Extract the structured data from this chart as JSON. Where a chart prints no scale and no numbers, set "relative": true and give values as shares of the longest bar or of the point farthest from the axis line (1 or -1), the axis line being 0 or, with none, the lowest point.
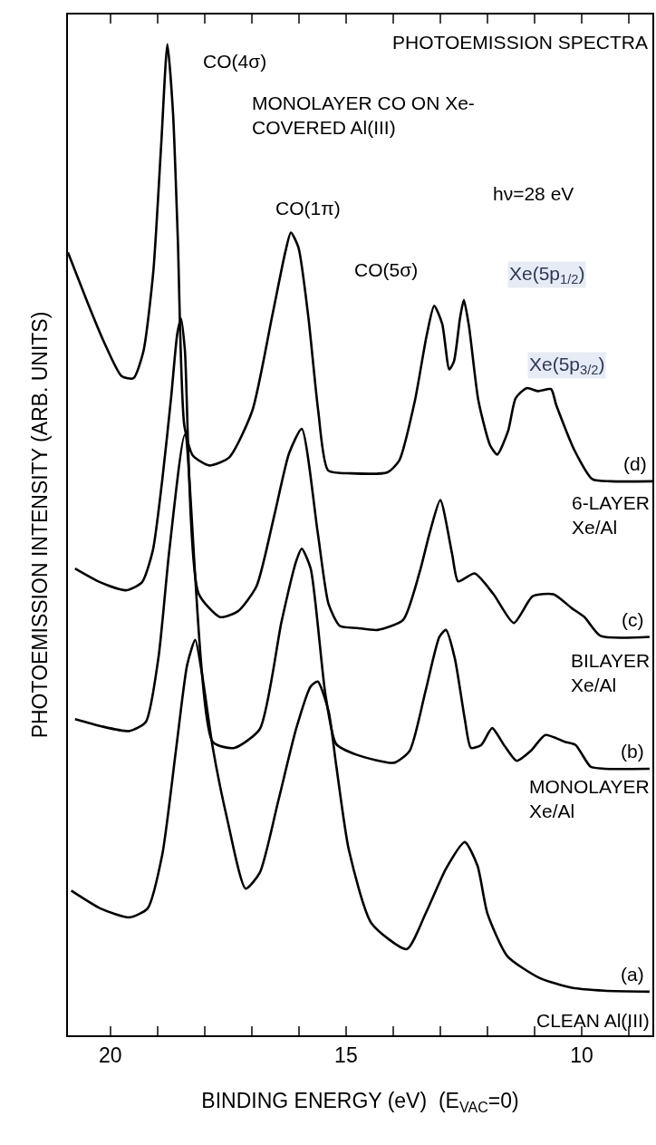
{
  "chart_data": {
    "type": "line",
    "title": "PHOTOEMISSION SPECTRA",
    "subtitle": "MONOLAYER CO ON Xe-\nCOVERED Al(III)",
    "xlabel": "BINDING ENERGY (eV)  (E$_{VAC}$=0)",
    "ylabel": "PHOTOEMISSION INTENSITY (ARB. UNITS)",
    "relative": true,
    "legend": false,
    "marker": "none",
    "line_style": "solid",
    "xlim": [
      20.9,
      8.5
    ],
    "xticks": [
      20,
      {
        "value": 19,
        "label": null
      },
      {
        "value": 18,
        "label": null
      },
      {
        "value": 17,
        "label": null
      },
      {
        "value": 16,
        "label": null
      },
      15,
      {
        "value": 14,
        "label": null
      },
      {
        "value": 13,
        "label": null
      },
      {
        "value": 12,
        "label": null
      },
      {
        "value": 11,
        "label": null
      },
      10,
      {
        "value": 9,
        "label": null
      }
    ],
    "series": [
      {
        "name": "(d)",
        "color": "#000000",
        "x": [
          20.9,
          20.49,
          20.14,
          19.76,
          19.51,
          19.3,
          19.09,
          18.92,
          18.79,
          18.67,
          18.57,
          18.43,
          18.25,
          17.9,
          17.48,
          16.99,
          16.57,
          16.29,
          16.17,
          16.01,
          15.8,
          15.59,
          15.38,
          14.9,
          14.12,
          13.87,
          13.54,
          13.29,
          13.13,
          12.96,
          12.81,
          12.71,
          12.58,
          12.5,
          12.39,
          12.19,
          11.94,
          11.79,
          11.56,
          11.4,
          11.17,
          10.92,
          10.65,
          10.54,
          10.15,
          9.77,
          9.38,
          8.5
        ],
        "values": [
          0.79,
          0.74,
          0.7,
          0.665,
          0.663,
          0.69,
          0.77,
          0.9,
          1.0,
          0.93,
          0.805,
          0.615,
          0.585,
          0.575,
          0.583,
          0.63,
          0.725,
          0.79,
          0.81,
          0.795,
          0.725,
          0.63,
          0.57,
          0.567,
          0.568,
          0.58,
          0.64,
          0.706,
          0.736,
          0.718,
          0.672,
          0.68,
          0.724,
          0.742,
          0.715,
          0.64,
          0.595,
          0.586,
          0.61,
          0.643,
          0.653,
          0.65,
          0.652,
          0.636,
          0.59,
          0.561,
          0.559,
          0.559
        ]
      },
      {
        "name": "(c)",
        "color": "#000000",
        "x": [
          20.75,
          20.21,
          19.67,
          19.33,
          19.1,
          18.9,
          18.71,
          18.58,
          18.5,
          18.42,
          18.13,
          17.67,
          17.29,
          16.9,
          16.52,
          16.21,
          15.94,
          15.6,
          15.37,
          15.13,
          14.77,
          14.33,
          13.79,
          13.44,
          13.23,
          13.0,
          12.75,
          12.62,
          12.27,
          11.87,
          11.44,
          11.04,
          10.6,
          10.21,
          9.94,
          9.6,
          8.56
        ],
        "values": [
          0.471,
          0.457,
          0.449,
          0.457,
          0.489,
          0.56,
          0.644,
          0.708,
          0.723,
          0.692,
          0.446,
          0.422,
          0.428,
          0.453,
          0.525,
          0.587,
          0.612,
          0.507,
          0.435,
          0.413,
          0.411,
          0.409,
          0.419,
          0.467,
          0.506,
          0.54,
          0.486,
          0.458,
          0.466,
          0.445,
          0.416,
          0.443,
          0.445,
          0.431,
          0.422,
          0.403,
          0.402
        ]
      },
      {
        "name": "(b)",
        "color": "#000000",
        "x": [
          20.75,
          20.21,
          19.6,
          19.25,
          18.98,
          18.75,
          18.42,
          17.83,
          17.37,
          16.83,
          16.37,
          16.06,
          15.94,
          15.75,
          15.44,
          15.21,
          14.77,
          13.98,
          13.65,
          13.31,
          13.02,
          12.88,
          12.69,
          12.48,
          12.35,
          12.13,
          11.9,
          11.65,
          11.38,
          11.08,
          10.77,
          10.35,
          10.13,
          9.81,
          9.52,
          8.56
        ],
        "values": [
          0.319,
          0.312,
          0.307,
          0.316,
          0.381,
          0.489,
          0.606,
          0.296,
          0.29,
          0.309,
          0.417,
          0.478,
          0.491,
          0.471,
          0.345,
          0.294,
          0.283,
          0.275,
          0.287,
          0.348,
          0.402,
          0.409,
          0.38,
          0.319,
          0.29,
          0.293,
          0.31,
          0.293,
          0.277,
          0.287,
          0.303,
          0.296,
          0.293,
          0.271,
          0.269,
          0.269
        ]
      },
      {
        "name": "(a)",
        "color": "#000000",
        "x": [
          20.83,
          20.21,
          19.6,
          19.21,
          18.9,
          18.6,
          18.37,
          18.2,
          18.06,
          17.83,
          17.52,
          17.13,
          16.83,
          16.44,
          16.06,
          15.75,
          15.6,
          15.37,
          15.21,
          14.94,
          14.46,
          13.71,
          13.31,
          12.88,
          12.48,
          12.21,
          12.0,
          11.58,
          10.9,
          10.21,
          9.52,
          8.56
        ],
        "values": [
          0.146,
          0.128,
          0.119,
          0.128,
          0.182,
          0.291,
          0.374,
          0.399,
          0.366,
          0.291,
          0.218,
          0.148,
          0.164,
          0.236,
          0.309,
          0.352,
          0.357,
          0.327,
          0.273,
          0.187,
          0.113,
          0.087,
          0.123,
          0.168,
          0.195,
          0.171,
          0.123,
          0.08,
          0.058,
          0.048,
          0.045,
          0.044
        ]
      }
    ],
    "annotations": [
      "hν=28 eV",
      "CO(4σ)",
      "CO(1π)",
      "CO(5σ)",
      "Xe(5p$_{1/2}$)",
      "Xe(5p$_{3/2}$)",
      "6-LAYER\nXe/Al",
      "BILAYER\nXe/Al",
      "MONOLAYER\nXe/Al",
      "CLEAN Al(III)"
    ]
  }
}
